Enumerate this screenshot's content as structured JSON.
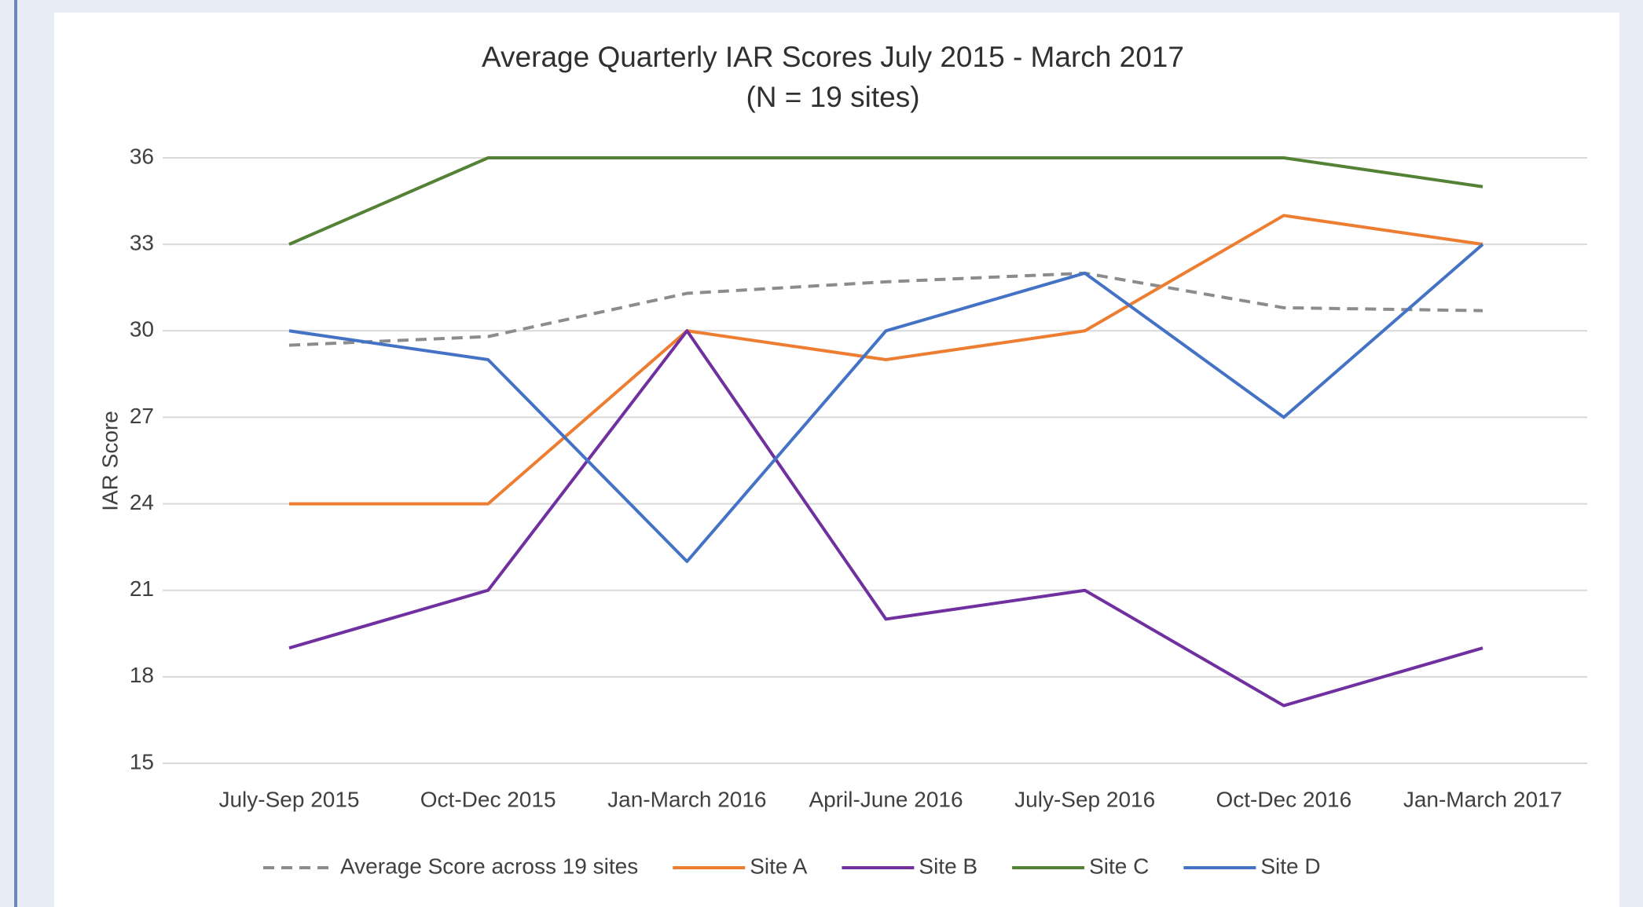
{
  "chart_data": {
    "type": "line",
    "title": "Average Quarterly IAR Scores July 2015 - March 2017",
    "subtitle": "(N = 19 sites)",
    "y_label": "IAR Score",
    "categories": [
      "July-Sep 2015",
      "Oct-Dec 2015",
      "Jan-March 2016",
      "April-June 2016",
      "July-Sep 2016",
      "Oct-Dec 2016",
      "Jan-March 2017"
    ],
    "series": [
      {
        "name": "Average Score across 19 sites",
        "color": "#8c8c8c",
        "dashed": true,
        "values": [
          29.5,
          29.8,
          31.3,
          31.7,
          32.0,
          30.8,
          30.7
        ]
      },
      {
        "name": "Site A",
        "color": "#ed7d31",
        "values": [
          24,
          24,
          30,
          29,
          30,
          34,
          33
        ]
      },
      {
        "name": "Site B",
        "color": "#7030a0",
        "values": [
          19,
          21,
          30,
          20,
          21,
          17,
          19
        ]
      },
      {
        "name": "Site C",
        "color": "#548235",
        "values": [
          33,
          36,
          36,
          36,
          36,
          36,
          35
        ]
      },
      {
        "name": "Site D",
        "color": "#4472c4",
        "values": [
          30,
          29,
          22,
          30,
          32,
          27,
          33
        ]
      }
    ],
    "ylim": [
      15,
      36
    ],
    "yticks": [
      15,
      18,
      21,
      24,
      27,
      30,
      33,
      36
    ],
    "grid": true,
    "legend": "bottom"
  }
}
